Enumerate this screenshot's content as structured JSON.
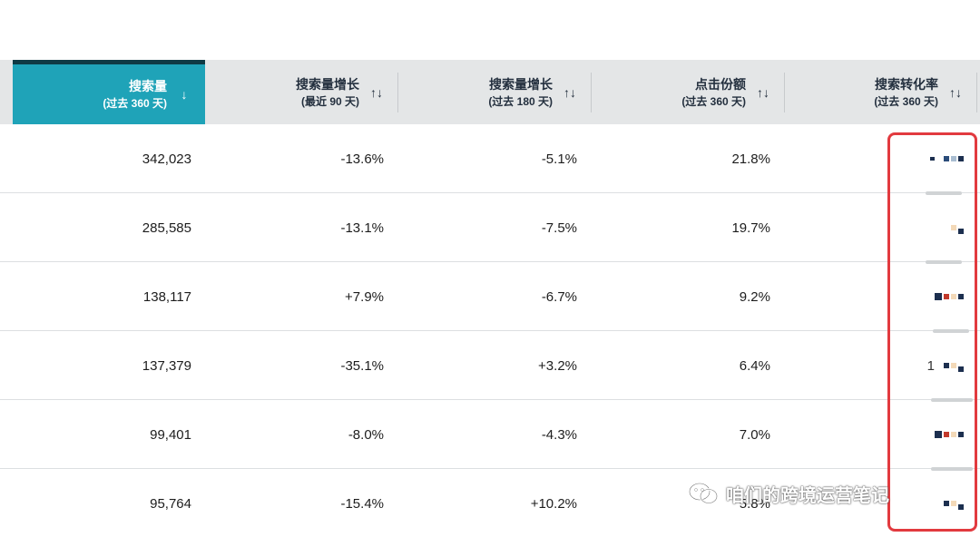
{
  "headers": [
    {
      "title": "搜索量",
      "sub": "(过去 360 天)",
      "sort": "↓"
    },
    {
      "title": "搜索量增长",
      "sub": "(最近 90 天)",
      "sort": "↑↓"
    },
    {
      "title": "搜索量增长",
      "sub": "(过去 180 天)",
      "sort": "↑↓"
    },
    {
      "title": "点击份额",
      "sub": "(过去 360 天)",
      "sort": "↑↓"
    },
    {
      "title": "搜索转化率",
      "sub": "(过去 360 天)",
      "sort": "↑↓"
    }
  ],
  "rows": [
    {
      "volume": "342,023",
      "growth90": "-13.6%",
      "growth180": "-5.1%",
      "click_share": "21.8%",
      "conv_prefix": ""
    },
    {
      "volume": "285,585",
      "growth90": "-13.1%",
      "growth180": "-7.5%",
      "click_share": "19.7%",
      "conv_prefix": ""
    },
    {
      "volume": "138,117",
      "growth90": "+7.9%",
      "growth180": "-6.7%",
      "click_share": "9.2%",
      "conv_prefix": ""
    },
    {
      "volume": "137,379",
      "growth90": "-35.1%",
      "growth180": "+3.2%",
      "click_share": "6.4%",
      "conv_prefix": "1"
    },
    {
      "volume": "99,401",
      "growth90": "-8.0%",
      "growth180": "-4.3%",
      "click_share": "7.0%",
      "conv_prefix": ""
    },
    {
      "volume": "95,764",
      "growth90": "-15.4%",
      "growth180": "+10.2%",
      "click_share": "5.8%",
      "conv_prefix": ""
    }
  ],
  "watermark": {
    "text": "咱们的跨境运营笔记",
    "icon": "wechat-icon"
  },
  "colors": {
    "active_header": "#1fa3b8",
    "header_bg": "#e4e6e7",
    "highlight_border": "#e23a3f"
  }
}
